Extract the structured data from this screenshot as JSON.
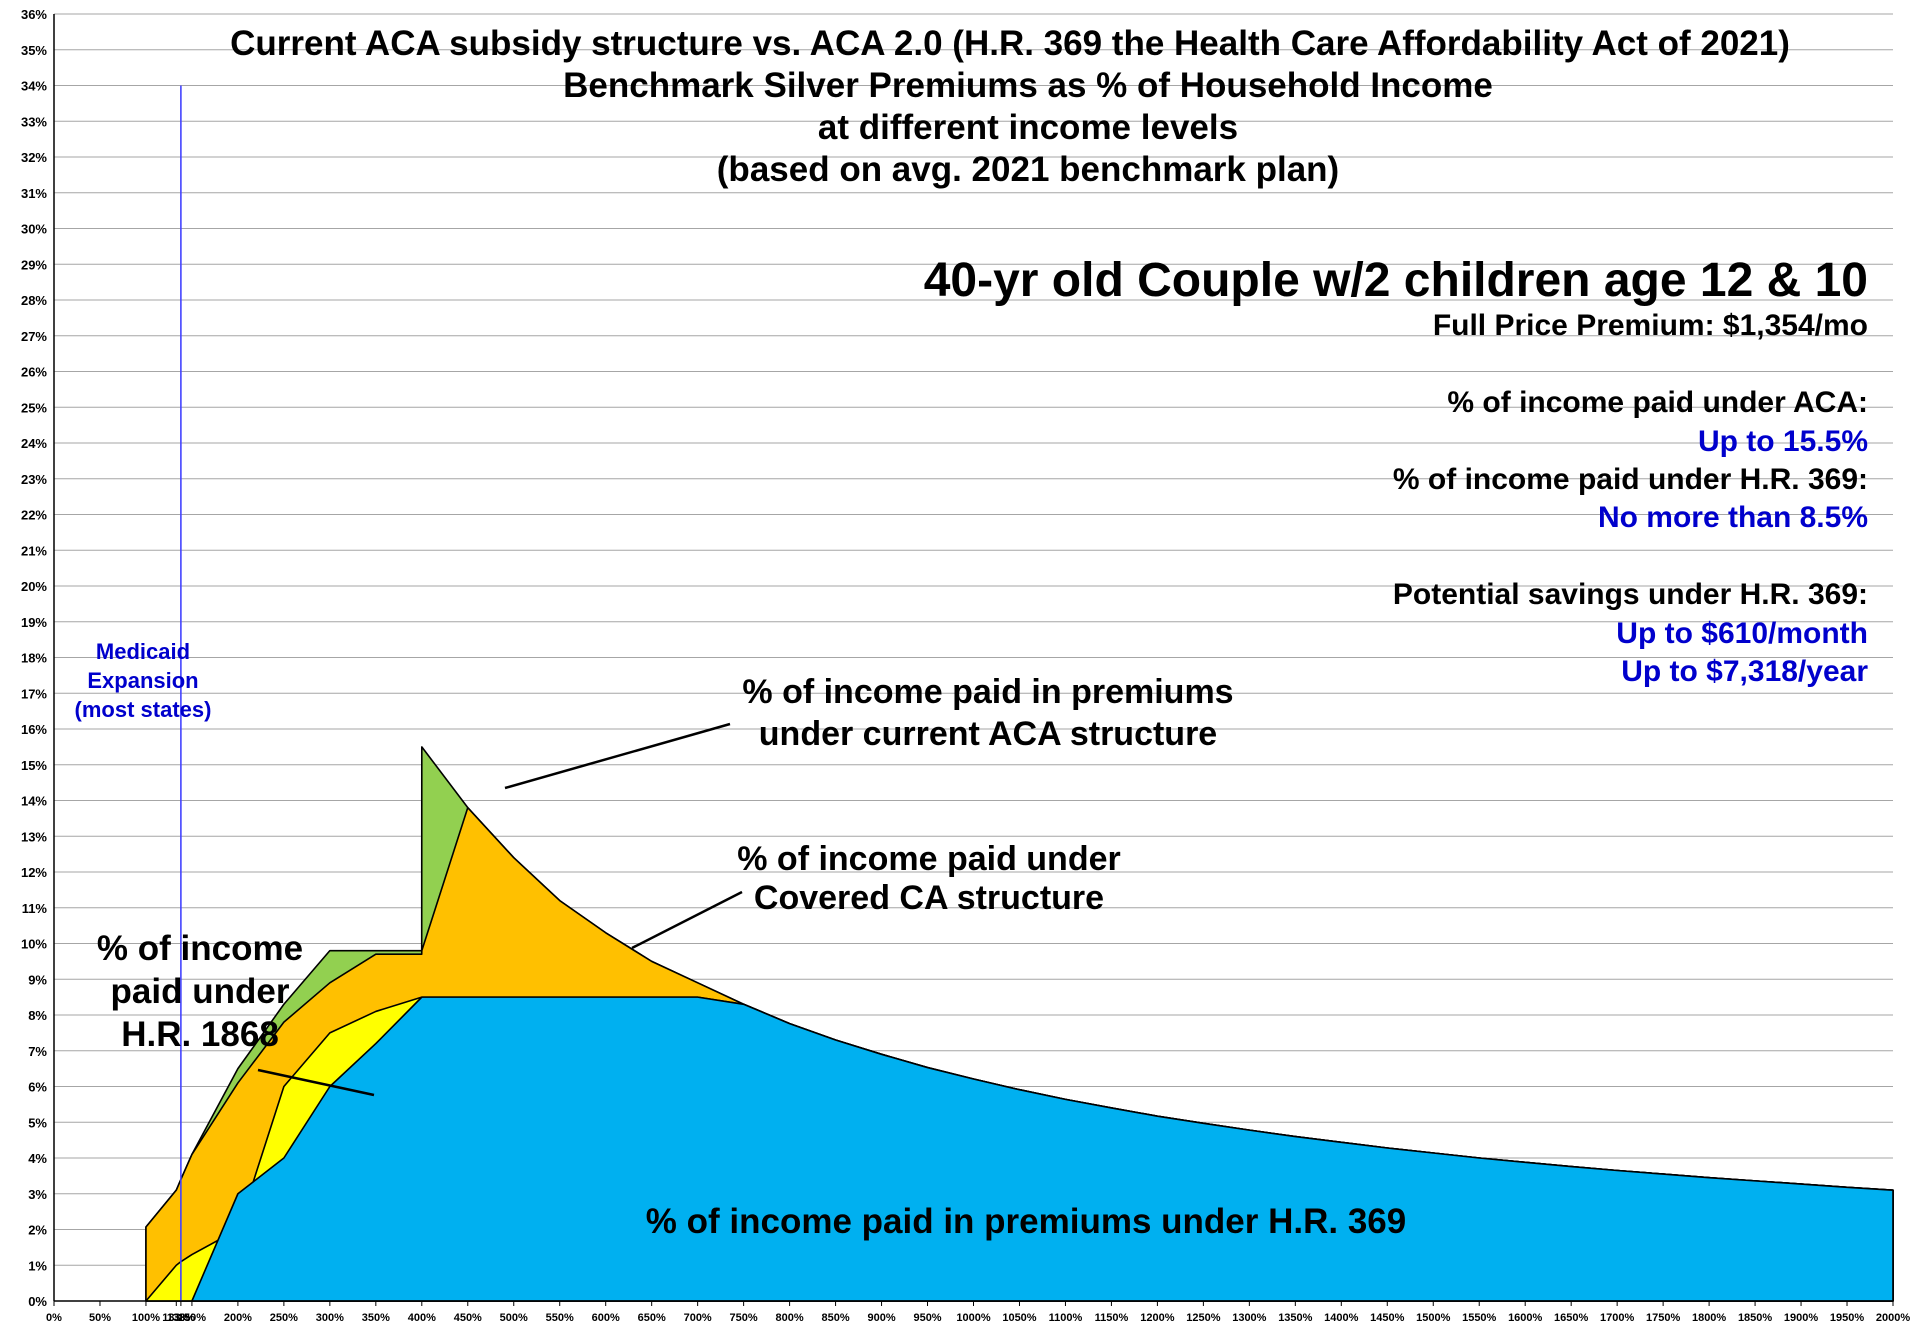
{
  "chart_data": {
    "type": "area",
    "title_lines": [
      "Current ACA subsidy structure vs. ACA 2.0 (H.R. 369 the Health Care Affordability Act of 2021)",
      "Benchmark Silver Premiums as % of Household Income",
      "at different income levels",
      "(based on avg. 2021 benchmark plan)"
    ],
    "ylim": [
      0,
      36
    ],
    "y_ticks": [
      "0%",
      "1%",
      "2%",
      "3%",
      "4%",
      "5%",
      "6%",
      "7%",
      "8%",
      "9%",
      "10%",
      "11%",
      "12%",
      "13%",
      "14%",
      "15%",
      "16%",
      "17%",
      "18%",
      "19%",
      "20%",
      "21%",
      "22%",
      "23%",
      "24%",
      "25%",
      "26%",
      "27%",
      "28%",
      "29%",
      "30%",
      "31%",
      "32%",
      "33%",
      "34%",
      "35%",
      "36%"
    ],
    "categories": [
      "0%",
      "50%",
      "100%",
      "133%",
      "138%",
      "150%",
      "200%",
      "250%",
      "300%",
      "350%",
      "400%",
      "450%",
      "500%",
      "550%",
      "600%",
      "650%",
      "700%",
      "750%",
      "800%",
      "850%",
      "900%",
      "950%",
      "1000%",
      "1050%",
      "1100%",
      "1150%",
      "1200%",
      "1250%",
      "1300%",
      "1350%",
      "1400%",
      "1450%",
      "1500%",
      "1550%",
      "1600%",
      "1650%",
      "1700%",
      "1750%",
      "1800%",
      "1850%",
      "1900%",
      "1950%",
      "2000%"
    ],
    "x_values": [
      0,
      50,
      100,
      133,
      138,
      150,
      200,
      250,
      300,
      350,
      400,
      450,
      500,
      550,
      600,
      650,
      700,
      750,
      800,
      850,
      900,
      950,
      1000,
      1050,
      1100,
      1150,
      1200,
      1250,
      1300,
      1350,
      1400,
      1450,
      1500,
      1550,
      1600,
      1650,
      1700,
      1750,
      1800,
      1850,
      1900,
      1950,
      2000
    ],
    "series": [
      {
        "name": "% of income paid in premiums under current ACA structure",
        "color": "#92d050",
        "points": [
          [
            100,
            2.07
          ],
          [
            133,
            3.1
          ],
          [
            138,
            3.4
          ],
          [
            150,
            4.1
          ],
          [
            200,
            6.5
          ],
          [
            250,
            8.3
          ],
          [
            300,
            9.8
          ],
          [
            350,
            9.8
          ],
          [
            399.9,
            9.8
          ],
          [
            400,
            15.5
          ],
          [
            450,
            13.8
          ],
          [
            500,
            12.4
          ],
          [
            550,
            11.2
          ],
          [
            600,
            10.3
          ],
          [
            650,
            9.5
          ],
          [
            700,
            8.9
          ],
          [
            750,
            8.3
          ],
          [
            800,
            7.76
          ],
          [
            850,
            7.3
          ],
          [
            900,
            6.9
          ],
          [
            950,
            6.53
          ],
          [
            1000,
            6.21
          ],
          [
            1050,
            5.91
          ],
          [
            1100,
            5.64
          ],
          [
            1150,
            5.4
          ],
          [
            1200,
            5.17
          ],
          [
            1250,
            4.97
          ],
          [
            1300,
            4.78
          ],
          [
            1350,
            4.6
          ],
          [
            1400,
            4.44
          ],
          [
            1450,
            4.28
          ],
          [
            1500,
            4.14
          ],
          [
            1550,
            4.0
          ],
          [
            1600,
            3.88
          ],
          [
            1650,
            3.76
          ],
          [
            1700,
            3.65
          ],
          [
            1750,
            3.55
          ],
          [
            1800,
            3.45
          ],
          [
            1850,
            3.36
          ],
          [
            1900,
            3.27
          ],
          [
            1950,
            3.18
          ],
          [
            2000,
            3.1
          ]
        ]
      },
      {
        "name": "% of income paid under Covered CA structure",
        "color": "#ffc000",
        "points": [
          [
            100,
            2.07
          ],
          [
            133,
            3.1
          ],
          [
            138,
            3.4
          ],
          [
            150,
            4.1
          ],
          [
            200,
            6.1
          ],
          [
            250,
            7.8
          ],
          [
            300,
            8.9
          ],
          [
            350,
            9.7
          ],
          [
            399.9,
            9.7
          ],
          [
            400,
            9.8
          ],
          [
            450,
            13.8
          ],
          [
            500,
            12.4
          ],
          [
            550,
            11.2
          ],
          [
            600,
            10.3
          ],
          [
            650,
            9.5
          ],
          [
            700,
            8.9
          ],
          [
            750,
            8.3
          ],
          [
            800,
            7.76
          ],
          [
            850,
            7.3
          ],
          [
            900,
            6.9
          ],
          [
            950,
            6.53
          ],
          [
            1000,
            6.21
          ],
          [
            1050,
            5.91
          ],
          [
            1100,
            5.64
          ],
          [
            1150,
            5.4
          ],
          [
            1200,
            5.17
          ],
          [
            1250,
            4.97
          ],
          [
            1300,
            4.78
          ],
          [
            1350,
            4.6
          ],
          [
            1400,
            4.44
          ],
          [
            1450,
            4.28
          ],
          [
            1500,
            4.14
          ],
          [
            1550,
            4.0
          ],
          [
            1600,
            3.88
          ],
          [
            1650,
            3.76
          ],
          [
            1700,
            3.65
          ],
          [
            1750,
            3.55
          ],
          [
            1800,
            3.45
          ],
          [
            1850,
            3.36
          ],
          [
            1900,
            3.27
          ],
          [
            1950,
            3.18
          ],
          [
            2000,
            3.1
          ]
        ]
      },
      {
        "name": "% of income paid under H.R. 1868",
        "color": "#ffff00",
        "points": [
          [
            100,
            0
          ],
          [
            133,
            1.0
          ],
          [
            138,
            1.1
          ],
          [
            150,
            1.3
          ],
          [
            200,
            2.0
          ],
          [
            250,
            6.0
          ],
          [
            300,
            7.5
          ],
          [
            350,
            8.1
          ],
          [
            400,
            8.5
          ],
          [
            450,
            8.5
          ],
          [
            500,
            8.5
          ],
          [
            550,
            8.5
          ],
          [
            600,
            8.5
          ],
          [
            650,
            8.5
          ],
          [
            700,
            8.5
          ],
          [
            750,
            8.3
          ],
          [
            800,
            7.76
          ],
          [
            850,
            7.3
          ],
          [
            900,
            6.9
          ],
          [
            950,
            6.53
          ],
          [
            1000,
            6.21
          ],
          [
            1050,
            5.91
          ],
          [
            1100,
            5.64
          ],
          [
            1150,
            5.4
          ],
          [
            1200,
            5.17
          ],
          [
            1250,
            4.97
          ],
          [
            1300,
            4.78
          ],
          [
            1350,
            4.6
          ],
          [
            1400,
            4.44
          ],
          [
            1450,
            4.28
          ],
          [
            1500,
            4.14
          ],
          [
            1550,
            4.0
          ],
          [
            1600,
            3.88
          ],
          [
            1650,
            3.76
          ],
          [
            1700,
            3.65
          ],
          [
            1750,
            3.55
          ],
          [
            1800,
            3.45
          ],
          [
            1850,
            3.36
          ],
          [
            1900,
            3.27
          ],
          [
            1950,
            3.18
          ],
          [
            2000,
            3.1
          ]
        ]
      },
      {
        "name": "% of income paid in premiums under H.R. 369",
        "color": "#00b0f0",
        "points": [
          [
            150,
            0
          ],
          [
            200,
            3.0
          ],
          [
            250,
            4.0
          ],
          [
            300,
            6.0
          ],
          [
            350,
            7.2
          ],
          [
            400,
            8.5
          ],
          [
            450,
            8.5
          ],
          [
            500,
            8.5
          ],
          [
            550,
            8.5
          ],
          [
            600,
            8.5
          ],
          [
            650,
            8.5
          ],
          [
            700,
            8.5
          ],
          [
            750,
            8.3
          ],
          [
            800,
            7.76
          ],
          [
            850,
            7.3
          ],
          [
            900,
            6.9
          ],
          [
            950,
            6.53
          ],
          [
            1000,
            6.21
          ],
          [
            1050,
            5.91
          ],
          [
            1100,
            5.64
          ],
          [
            1150,
            5.4
          ],
          [
            1200,
            5.17
          ],
          [
            1250,
            4.97
          ],
          [
            1300,
            4.78
          ],
          [
            1350,
            4.6
          ],
          [
            1400,
            4.44
          ],
          [
            1450,
            4.28
          ],
          [
            1500,
            4.14
          ],
          [
            1550,
            4.0
          ],
          [
            1600,
            3.88
          ],
          [
            1650,
            3.76
          ],
          [
            1700,
            3.65
          ],
          [
            1750,
            3.55
          ],
          [
            1800,
            3.45
          ],
          [
            1850,
            3.36
          ],
          [
            1900,
            3.27
          ],
          [
            1950,
            3.18
          ],
          [
            2000,
            3.1
          ]
        ]
      }
    ],
    "reference_line": {
      "x": 138,
      "ylim_top": 34,
      "color": "#4444ff"
    },
    "grid": true
  },
  "annotations": {
    "aca": [
      "% of income paid in premiums",
      "under current ACA structure"
    ],
    "covered_ca": [
      "% of income paid under",
      "Covered CA structure"
    ],
    "hr1868": [
      "% of income",
      "paid under",
      "H.R. 1868"
    ],
    "hr369": "% of income paid in premiums under H.R. 369",
    "medicaid": [
      "Medicaid",
      "Expansion",
      "(most states)"
    ]
  },
  "info_panel": {
    "household": "40-yr old Couple w/2 children age 12 & 10",
    "full_price": "Full Price Premium: $1,354/mo",
    "aca_label": "% of income paid under ACA:",
    "aca_value": "Up to 15.5%",
    "hr369_label": "% of income paid under H.R. 369:",
    "hr369_value": "No more than 8.5%",
    "savings_label": "Potential savings under H.R. 369:",
    "savings_month": "Up to $610/month",
    "savings_year": "Up to $7,318/year"
  },
  "colors": {
    "aca": "#92d050",
    "covered_ca": "#ffc000",
    "hr1868": "#ffff00",
    "hr369": "#00b0f0",
    "accent_blue": "#0000cc"
  }
}
